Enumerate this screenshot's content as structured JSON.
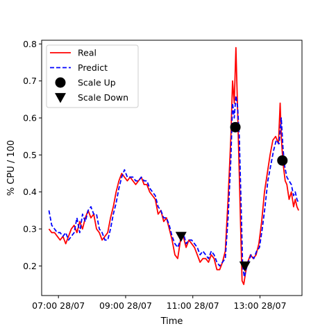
{
  "chart_data": {
    "type": "line",
    "title": "",
    "xlabel": "Time",
    "ylabel": "% CPU / 100",
    "xlim": [
      "06:30",
      "14:15"
    ],
    "ylim": [
      0.12,
      0.81
    ],
    "grid": false,
    "legend_position": "top-left",
    "x_ticks": [
      {
        "at": "07:00",
        "label": "07:00 28/07"
      },
      {
        "at": "09:00",
        "label": "09:00 28/07"
      },
      {
        "at": "11:00",
        "label": "11:00 28/07"
      },
      {
        "at": "13:00",
        "label": "13:00 28/07"
      }
    ],
    "y_ticks": [
      0.2,
      0.3,
      0.4,
      0.5,
      0.6,
      0.7,
      0.8
    ],
    "series": [
      {
        "name": "Real",
        "style": "solid",
        "color": "#ff0000",
        "points": [
          [
            "06:43",
            0.3
          ],
          [
            "06:48",
            0.29
          ],
          [
            "06:53",
            0.29
          ],
          [
            "06:58",
            0.28
          ],
          [
            "07:03",
            0.27
          ],
          [
            "07:08",
            0.28
          ],
          [
            "07:13",
            0.26
          ],
          [
            "07:18",
            0.28
          ],
          [
            "07:23",
            0.3
          ],
          [
            "07:28",
            0.31
          ],
          [
            "07:33",
            0.29
          ],
          [
            "07:38",
            0.32
          ],
          [
            "07:43",
            0.3
          ],
          [
            "07:48",
            0.33
          ],
          [
            "07:53",
            0.35
          ],
          [
            "07:58",
            0.33
          ],
          [
            "08:03",
            0.34
          ],
          [
            "08:08",
            0.3
          ],
          [
            "08:13",
            0.29
          ],
          [
            "08:18",
            0.27
          ],
          [
            "08:23",
            0.28
          ],
          [
            "08:28",
            0.29
          ],
          [
            "08:33",
            0.33
          ],
          [
            "08:38",
            0.36
          ],
          [
            "08:43",
            0.4
          ],
          [
            "08:48",
            0.43
          ],
          [
            "08:53",
            0.45
          ],
          [
            "08:58",
            0.44
          ],
          [
            "09:03",
            0.43
          ],
          [
            "09:08",
            0.44
          ],
          [
            "09:13",
            0.43
          ],
          [
            "09:18",
            0.42
          ],
          [
            "09:23",
            0.43
          ],
          [
            "09:28",
            0.44
          ],
          [
            "09:33",
            0.42
          ],
          [
            "09:38",
            0.42
          ],
          [
            "09:43",
            0.4
          ],
          [
            "09:48",
            0.39
          ],
          [
            "09:53",
            0.38
          ],
          [
            "09:58",
            0.34
          ],
          [
            "10:03",
            0.35
          ],
          [
            "10:08",
            0.32
          ],
          [
            "10:13",
            0.33
          ],
          [
            "10:18",
            0.3
          ],
          [
            "10:23",
            0.27
          ],
          [
            "10:28",
            0.23
          ],
          [
            "10:33",
            0.22
          ],
          [
            "10:38",
            0.27
          ],
          [
            "10:43",
            0.28
          ],
          [
            "10:48",
            0.25
          ],
          [
            "10:53",
            0.27
          ],
          [
            "10:58",
            0.26
          ],
          [
            "11:03",
            0.25
          ],
          [
            "11:08",
            0.23
          ],
          [
            "11:13",
            0.21
          ],
          [
            "11:18",
            0.22
          ],
          [
            "11:23",
            0.22
          ],
          [
            "11:28",
            0.21
          ],
          [
            "11:33",
            0.23
          ],
          [
            "11:38",
            0.22
          ],
          [
            "11:43",
            0.19
          ],
          [
            "11:48",
            0.19
          ],
          [
            "11:53",
            0.21
          ],
          [
            "11:58",
            0.24
          ],
          [
            "12:03",
            0.38
          ],
          [
            "12:08",
            0.55
          ],
          [
            "12:11",
            0.7
          ],
          [
            "12:14",
            0.64
          ],
          [
            "12:17",
            0.79
          ],
          [
            "12:20",
            0.62
          ],
          [
            "12:23",
            0.45
          ],
          [
            "12:26",
            0.27
          ],
          [
            "12:28",
            0.16
          ],
          [
            "12:31",
            0.15
          ],
          [
            "12:34",
            0.18
          ],
          [
            "12:38",
            0.21
          ],
          [
            "12:43",
            0.23
          ],
          [
            "12:48",
            0.22
          ],
          [
            "12:53",
            0.23
          ],
          [
            "12:58",
            0.26
          ],
          [
            "13:03",
            0.32
          ],
          [
            "13:08",
            0.4
          ],
          [
            "13:13",
            0.45
          ],
          [
            "13:18",
            0.5
          ],
          [
            "13:23",
            0.54
          ],
          [
            "13:28",
            0.55
          ],
          [
            "13:33",
            0.53
          ],
          [
            "13:36",
            0.64
          ],
          [
            "13:38",
            0.55
          ],
          [
            "13:41",
            0.48
          ],
          [
            "13:45",
            0.43
          ],
          [
            "13:48",
            0.42
          ],
          [
            "13:52",
            0.38
          ],
          [
            "13:56",
            0.4
          ],
          [
            "14:00",
            0.36
          ],
          [
            "14:03",
            0.38
          ],
          [
            "14:06",
            0.36
          ],
          [
            "14:09",
            0.35
          ]
        ]
      },
      {
        "name": "Predict",
        "style": "dashed",
        "color": "#0000ff",
        "points": [
          [
            "06:43",
            0.35
          ],
          [
            "06:48",
            0.31
          ],
          [
            "06:53",
            0.3
          ],
          [
            "06:58",
            0.29
          ],
          [
            "07:03",
            0.29
          ],
          [
            "07:08",
            0.28
          ],
          [
            "07:13",
            0.29
          ],
          [
            "07:18",
            0.27
          ],
          [
            "07:23",
            0.28
          ],
          [
            "07:28",
            0.29
          ],
          [
            "07:33",
            0.33
          ],
          [
            "07:38",
            0.29
          ],
          [
            "07:43",
            0.34
          ],
          [
            "07:48",
            0.32
          ],
          [
            "07:53",
            0.35
          ],
          [
            "07:58",
            0.36
          ],
          [
            "08:03",
            0.34
          ],
          [
            "08:08",
            0.34
          ],
          [
            "08:13",
            0.3
          ],
          [
            "08:18",
            0.29
          ],
          [
            "08:23",
            0.27
          ],
          [
            "08:28",
            0.27
          ],
          [
            "08:33",
            0.3
          ],
          [
            "08:38",
            0.34
          ],
          [
            "08:43",
            0.37
          ],
          [
            "08:48",
            0.41
          ],
          [
            "08:53",
            0.44
          ],
          [
            "08:58",
            0.46
          ],
          [
            "09:03",
            0.44
          ],
          [
            "09:08",
            0.44
          ],
          [
            "09:13",
            0.44
          ],
          [
            "09:18",
            0.43
          ],
          [
            "09:23",
            0.43
          ],
          [
            "09:28",
            0.44
          ],
          [
            "09:33",
            0.43
          ],
          [
            "09:38",
            0.43
          ],
          [
            "09:43",
            0.41
          ],
          [
            "09:48",
            0.4
          ],
          [
            "09:53",
            0.39
          ],
          [
            "09:58",
            0.36
          ],
          [
            "10:03",
            0.35
          ],
          [
            "10:08",
            0.33
          ],
          [
            "10:13",
            0.33
          ],
          [
            "10:18",
            0.31
          ],
          [
            "10:23",
            0.28
          ],
          [
            "10:28",
            0.26
          ],
          [
            "10:33",
            0.25
          ],
          [
            "10:38",
            0.27
          ],
          [
            "10:43",
            0.29
          ],
          [
            "10:48",
            0.26
          ],
          [
            "10:53",
            0.27
          ],
          [
            "10:58",
            0.27
          ],
          [
            "11:03",
            0.26
          ],
          [
            "11:08",
            0.25
          ],
          [
            "11:13",
            0.23
          ],
          [
            "11:18",
            0.24
          ],
          [
            "11:23",
            0.23
          ],
          [
            "11:28",
            0.22
          ],
          [
            "11:33",
            0.24
          ],
          [
            "11:38",
            0.23
          ],
          [
            "11:43",
            0.21
          ],
          [
            "11:48",
            0.2
          ],
          [
            "11:53",
            0.21
          ],
          [
            "11:58",
            0.22
          ],
          [
            "12:03",
            0.33
          ],
          [
            "12:08",
            0.49
          ],
          [
            "12:11",
            0.64
          ],
          [
            "12:14",
            0.6
          ],
          [
            "12:17",
            0.66
          ],
          [
            "12:20",
            0.63
          ],
          [
            "12:23",
            0.55
          ],
          [
            "12:26",
            0.38
          ],
          [
            "12:29",
            0.2
          ],
          [
            "12:32",
            0.17
          ],
          [
            "12:35",
            0.19
          ],
          [
            "12:39",
            0.21
          ],
          [
            "12:44",
            0.23
          ],
          [
            "12:49",
            0.22
          ],
          [
            "12:54",
            0.24
          ],
          [
            "12:59",
            0.25
          ],
          [
            "13:04",
            0.3
          ],
          [
            "13:09",
            0.36
          ],
          [
            "13:14",
            0.43
          ],
          [
            "13:19",
            0.47
          ],
          [
            "13:24",
            0.51
          ],
          [
            "13:29",
            0.54
          ],
          [
            "13:34",
            0.53
          ],
          [
            "13:38",
            0.6
          ],
          [
            "13:41",
            0.52
          ],
          [
            "13:44",
            0.47
          ],
          [
            "13:48",
            0.44
          ],
          [
            "13:52",
            0.43
          ],
          [
            "13:56",
            0.42
          ],
          [
            "14:00",
            0.39
          ],
          [
            "14:03",
            0.4
          ],
          [
            "14:06",
            0.38
          ],
          [
            "14:09",
            0.37
          ]
        ]
      }
    ],
    "markers": [
      {
        "name": "Scale Up",
        "shape": "circle",
        "color": "#000000",
        "points": [
          [
            "12:16",
            0.575
          ],
          [
            "13:40",
            0.485
          ]
        ]
      },
      {
        "name": "Scale Down",
        "shape": "triangle-down",
        "color": "#000000",
        "points": [
          [
            "10:39",
            0.28
          ],
          [
            "12:33",
            0.2
          ]
        ]
      }
    ]
  }
}
